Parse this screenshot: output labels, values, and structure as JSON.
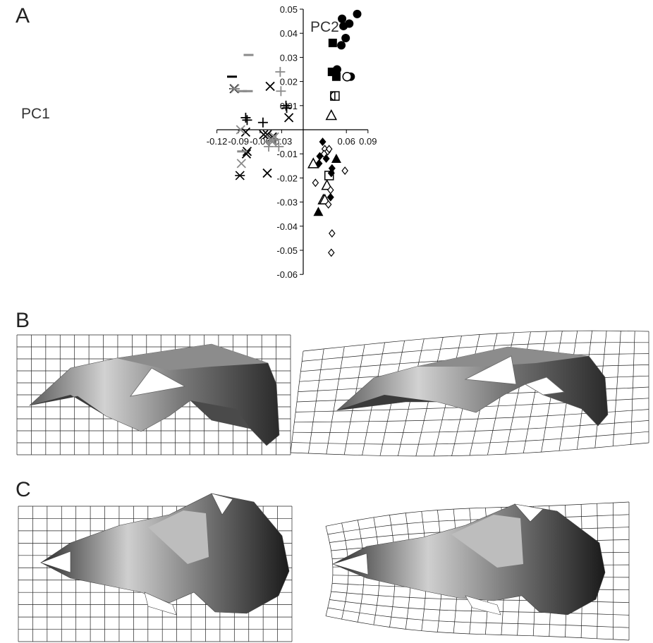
{
  "panels": {
    "a": "A",
    "b": "B",
    "c": "C"
  },
  "chart_data": {
    "type": "scatter",
    "title": "",
    "xlabel": "PC1",
    "ylabel": "PC2",
    "xlim": [
      -0.12,
      0.09
    ],
    "ylim": [
      -0.06,
      0.05
    ],
    "x_ticks": [
      "-0.12",
      "-0.09",
      "-0.06",
      "-0.03",
      "0.06",
      "0.09"
    ],
    "y_ticks": [
      "0.05",
      "0.04",
      "0.03",
      "0.02",
      "0.01",
      "-0.01",
      "-0.02",
      "-0.03",
      "-0.04",
      "-0.05",
      "-0.06"
    ],
    "grid": false,
    "legend": "none",
    "colors": {
      "black": "#000000",
      "gray": "#8a8a8a"
    },
    "series": [
      {
        "marker": "filled-circle",
        "color": "black",
        "points": [
          [
            0.075,
            0.048
          ],
          [
            0.054,
            0.046
          ],
          [
            0.064,
            0.044
          ],
          [
            0.056,
            0.043
          ],
          [
            0.059,
            0.038
          ],
          [
            0.053,
            0.035
          ],
          [
            0.047,
            0.025
          ],
          [
            0.066,
            0.022
          ]
        ]
      },
      {
        "marker": "open-circle",
        "color": "black",
        "points": [
          [
            0.061,
            0.022
          ]
        ]
      },
      {
        "marker": "filled-square",
        "color": "black",
        "points": [
          [
            0.041,
            0.036
          ],
          [
            0.04,
            0.024
          ],
          [
            0.046,
            0.022
          ]
        ]
      },
      {
        "marker": "open-square",
        "color": "black",
        "points": [
          [
            0.044,
            0.014
          ],
          [
            0.036,
            -0.019
          ]
        ]
      },
      {
        "marker": "open-semicircle",
        "color": "black",
        "points": [
          [
            0.042,
            0.014
          ]
        ]
      },
      {
        "marker": "open-triangle",
        "color": "black",
        "points": [
          [
            0.039,
            0.006
          ],
          [
            0.014,
            -0.014
          ],
          [
            0.033,
            -0.023
          ],
          [
            0.028,
            -0.029
          ],
          [
            0.03,
            -0.029
          ]
        ]
      },
      {
        "marker": "filled-triangle",
        "color": "black",
        "points": [
          [
            0.046,
            -0.012
          ],
          [
            0.021,
            -0.034
          ]
        ]
      },
      {
        "marker": "filled-diamond",
        "color": "black",
        "points": [
          [
            0.027,
            -0.005
          ],
          [
            0.023,
            -0.011
          ],
          [
            0.022,
            -0.014
          ],
          [
            0.032,
            -0.012
          ],
          [
            0.04,
            -0.016
          ],
          [
            0.039,
            -0.018
          ],
          [
            0.038,
            -0.028
          ]
        ]
      },
      {
        "marker": "open-diamond",
        "color": "black",
        "points": [
          [
            0.03,
            -0.008
          ],
          [
            0.034,
            -0.009
          ],
          [
            0.036,
            -0.008
          ],
          [
            0.029,
            -0.01
          ],
          [
            0.017,
            -0.022
          ],
          [
            0.038,
            -0.025
          ],
          [
            0.035,
            -0.031
          ],
          [
            0.058,
            -0.017
          ],
          [
            0.04,
            -0.043
          ],
          [
            0.039,
            -0.051
          ]
        ]
      },
      {
        "marker": "x",
        "color": "black",
        "points": [
          [
            -0.046,
            0.018
          ],
          [
            -0.02,
            0.005
          ],
          [
            -0.08,
            -0.001
          ],
          [
            -0.055,
            -0.002
          ],
          [
            -0.05,
            -0.002
          ],
          [
            -0.043,
            -0.003
          ],
          [
            -0.079,
            -0.01
          ],
          [
            -0.05,
            -0.018
          ],
          [
            -0.078,
            -0.009
          ]
        ]
      },
      {
        "marker": "x",
        "color": "gray",
        "points": [
          [
            -0.087,
            0.0
          ],
          [
            -0.045,
            -0.004
          ],
          [
            -0.04,
            -0.003
          ],
          [
            -0.043,
            -0.005
          ],
          [
            -0.086,
            -0.014
          ]
        ]
      },
      {
        "marker": "plus",
        "color": "black",
        "points": [
          [
            -0.08,
            0.005
          ],
          [
            -0.078,
            0.004
          ],
          [
            -0.056,
            0.003
          ],
          [
            -0.024,
            0.01
          ],
          [
            -0.023,
            0.009
          ]
        ]
      },
      {
        "marker": "plus",
        "color": "gray",
        "points": [
          [
            -0.032,
            0.024
          ],
          [
            -0.031,
            0.016
          ],
          [
            -0.038,
            -0.004
          ],
          [
            -0.047,
            -0.005
          ],
          [
            -0.048,
            -0.007
          ],
          [
            -0.034,
            -0.007
          ]
        ]
      },
      {
        "marker": "asterisk",
        "color": "black",
        "points": [
          [
            -0.096,
            0.017
          ],
          [
            -0.088,
            -0.019
          ]
        ]
      },
      {
        "marker": "asterisk",
        "color": "gray",
        "points": [
          [
            -0.095,
            0.017
          ]
        ]
      },
      {
        "marker": "dash",
        "color": "black",
        "points": [
          [
            -0.099,
            0.022
          ]
        ]
      },
      {
        "marker": "dash",
        "color": "gray",
        "points": [
          [
            -0.076,
            0.031
          ],
          [
            -0.085,
            0.016
          ],
          [
            -0.077,
            0.016
          ],
          [
            -0.085,
            -0.009
          ]
        ]
      }
    ]
  }
}
